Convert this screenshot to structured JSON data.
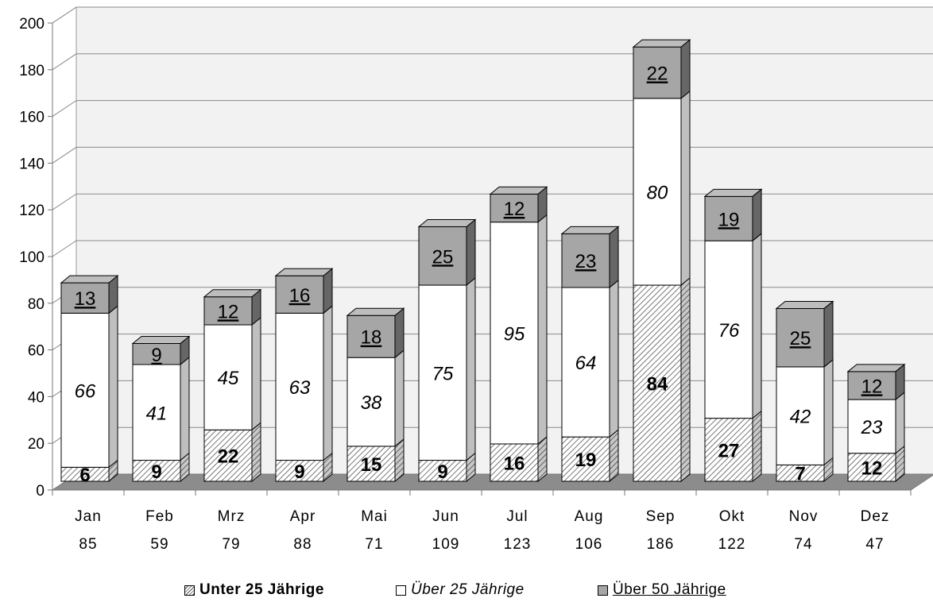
{
  "chart_data": {
    "type": "bar",
    "stacked": true,
    "style": "3d",
    "categories": [
      "Jan",
      "Feb",
      "Mrz",
      "Apr",
      "Mai",
      "Jun",
      "Jul",
      "Aug",
      "Sep",
      "Okt",
      "Nov",
      "Dez"
    ],
    "totals": [
      "85",
      "59",
      "79",
      "88",
      "71",
      "109",
      "123",
      "106",
      "186",
      "122",
      "74",
      "47"
    ],
    "series": [
      {
        "name": "Unter 25 Jährige",
        "values": [
          6,
          9,
          22,
          9,
          15,
          9,
          16,
          19,
          84,
          27,
          7,
          12
        ],
        "color": "#ffffff",
        "pattern": "hatched"
      },
      {
        "name": "Über 25 Jährige",
        "values": [
          66,
          41,
          45,
          63,
          38,
          75,
          95,
          64,
          80,
          76,
          42,
          23
        ],
        "color": "#ffffff"
      },
      {
        "name": "Über 50 Jährige",
        "values": [
          13,
          9,
          12,
          16,
          18,
          25,
          12,
          23,
          22,
          19,
          25,
          12
        ],
        "color": "#a6a6a6"
      }
    ],
    "yticks": [
      "0",
      "20",
      "40",
      "60",
      "80",
      "100",
      "120",
      "140",
      "160",
      "180",
      "200"
    ],
    "ylim": [
      0,
      200
    ],
    "grid": true,
    "legend_position": "bottom"
  }
}
